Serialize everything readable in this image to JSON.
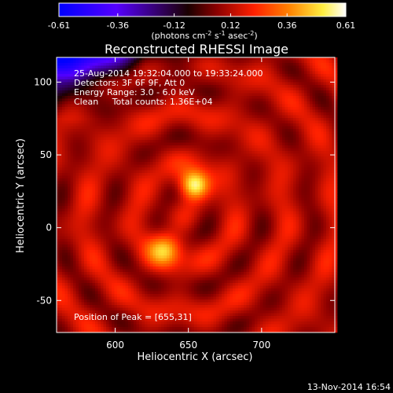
{
  "chart_data": {
    "type": "heatmap",
    "title": "Reconstructed RHESSI Image",
    "xlabel": "Heliocentric X (arcsec)",
    "ylabel": "Heliocentric Y (arcsec)",
    "xlim": [
      560,
      750
    ],
    "ylim": [
      -72,
      117
    ],
    "x_ticks": [
      600,
      650,
      700
    ],
    "y_ticks": [
      -50,
      0,
      50,
      100
    ],
    "colorbar": {
      "min": -0.61,
      "max": 0.61,
      "ticks": [
        "-0.61",
        "-0.36",
        "-0.12",
        "0.12",
        "0.36",
        "0.61"
      ],
      "label_prefix": "(photons cm",
      "label_exp1": "-2",
      "label_mid": " s",
      "label_exp2": "-1",
      "label_suffix": " asec",
      "label_exp3": "-2",
      "label_end": ")"
    },
    "info_lines": [
      "25-Aug-2014 19:32:04.000 to 19:33:24.000",
      "Detectors: 3F 6F 9F, Att 0",
      "Energy Range: 3.0 - 6.0 keV",
      "Clean     Total counts: 1.36E+04"
    ],
    "peak_label": "Position of Peak = [655,31]",
    "sources": [
      {
        "x": 654,
        "y": 29,
        "peak": 0.61
      },
      {
        "x": 634,
        "y": -15,
        "peak": 0.45
      }
    ],
    "background_level": 0.12,
    "colormap": [
      "#0000ff",
      "#5500ff",
      "#000000",
      "#8b0000",
      "#ff2000",
      "#ff8000",
      "#ffff60",
      "#ffffff"
    ]
  },
  "footer_date": "13-Nov-2014 16:54"
}
